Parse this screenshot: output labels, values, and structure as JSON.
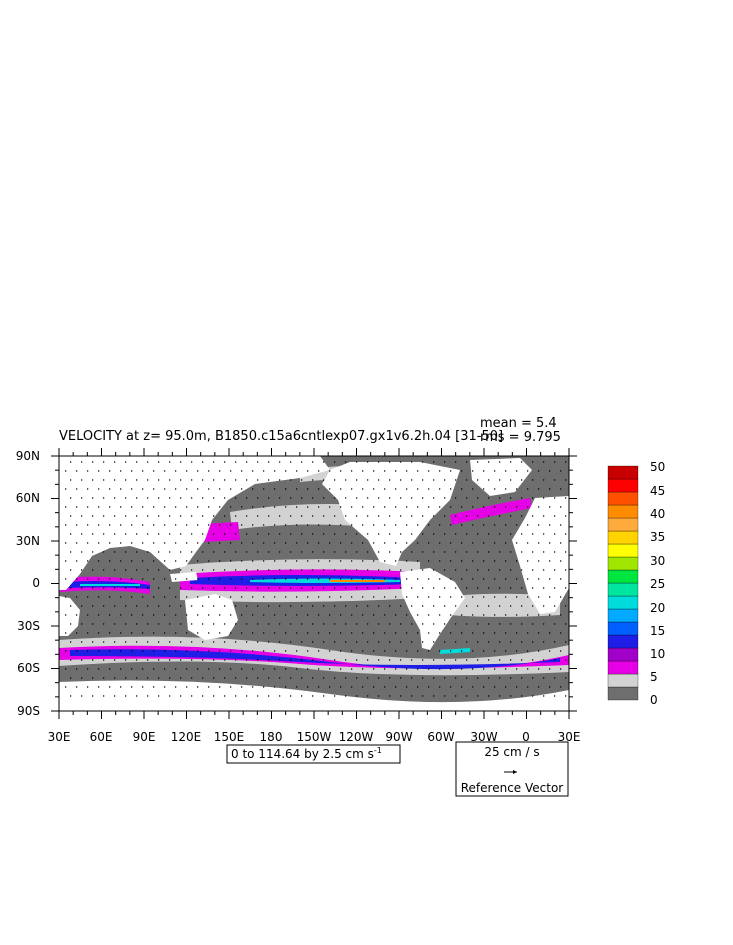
{
  "title": "VELOCITY at z=  95.0m, B1850.c15a6cntlexp07.gx1v6.2h.04 [31-50]",
  "stats": {
    "mean": "mean = 5.4",
    "rms": "rms = 9.795"
  },
  "axes": {
    "lat_labels": [
      "90N",
      "60N",
      "30N",
      "0",
      "30S",
      "60S",
      "90S"
    ],
    "lon_labels": [
      "30E",
      "60E",
      "90E",
      "120E",
      "150E",
      "180",
      "150W",
      "120W",
      "90W",
      "60W",
      "30W",
      "0",
      "30E"
    ]
  },
  "contour_info": {
    "text": "0 to 114.64 by 2.5 cm s",
    "sup": "-1"
  },
  "reference_vector": {
    "magnitude": "25 cm / s",
    "caption": "Reference Vector"
  },
  "colorbar": {
    "labels": [
      "0",
      "5",
      "10",
      "15",
      "20",
      "25",
      "30",
      "35",
      "40",
      "45",
      "50"
    ],
    "colors": [
      "#6e6e6e",
      "#d2d2d2",
      "#e600e6",
      "#a000c8",
      "#1e1ee6",
      "#0060ff",
      "#00aaff",
      "#00dcdc",
      "#00e6a0",
      "#00e640",
      "#a0e600",
      "#ffff00",
      "#ffd200",
      "#ffaa3c",
      "#ff8c00",
      "#ff5000",
      "#ff0000",
      "#c80000"
    ]
  },
  "colors": {
    "land": "#ffffff",
    "ocean_low": "#6e6e6e",
    "ocean_mid": "#d2d2d2",
    "jet": "#e600e6",
    "fast": "#1e1ee6",
    "faster": "#00dcdc"
  }
}
